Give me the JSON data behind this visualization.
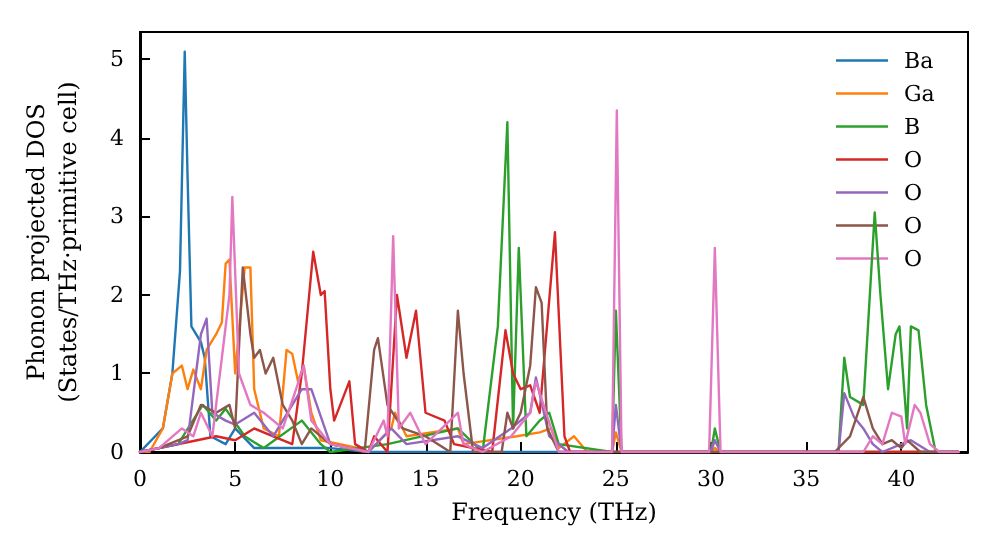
{
  "chart_data": {
    "type": "line",
    "xlabel": "Frequency (THz)",
    "ylabel": "Phonon projected DOS\n(States/THz·primitive cell)",
    "xlim": [
      0,
      43.5
    ],
    "xticks": [
      0,
      5,
      10,
      15,
      20,
      25,
      30,
      35,
      40
    ],
    "ylim": [
      0,
      5.35
    ],
    "yticks": [
      0,
      1,
      2,
      3,
      4,
      5
    ],
    "grid": false,
    "legend": "top right",
    "line_style": "solid",
    "series": [
      {
        "name": "Ba",
        "color": "#1f77b4",
        "x": [
          0,
          1.2,
          1.7,
          2.1,
          2.35,
          2.5,
          2.7,
          3.2,
          3.4,
          3.7,
          4.5,
          5,
          6,
          8,
          10,
          12,
          43
        ],
        "values": [
          0,
          0.3,
          1,
          2.3,
          5.1,
          3.5,
          1.6,
          1.4,
          1.2,
          0.2,
          0.1,
          0.3,
          0.05,
          0.05,
          0.05,
          0,
          0
        ]
      },
      {
        "name": "Ga",
        "color": "#ff7f0e",
        "x": [
          0,
          0.5,
          1.2,
          1.7,
          2.2,
          2.5,
          2.8,
          3.2,
          3.5,
          4,
          4.3,
          4.5,
          4.7,
          5,
          5.5,
          5.8,
          6,
          6.5,
          7.3,
          7.7,
          8,
          8.3,
          8.6,
          9,
          9.5,
          10.5,
          11.5,
          12,
          13.2,
          13.4,
          14,
          16.7,
          17,
          19.8,
          21,
          21.6,
          22,
          22.8,
          23.5,
          24.8,
          25,
          25.3,
          30,
          30.2,
          30.5,
          43
        ],
        "values": [
          0,
          0,
          0.3,
          1,
          1.1,
          0.8,
          1.05,
          0.8,
          1.3,
          1.5,
          1.65,
          2.4,
          2.45,
          1,
          2.35,
          2.35,
          0.8,
          0.3,
          0.2,
          1.3,
          1.25,
          0.9,
          1.1,
          0.5,
          0.15,
          0.1,
          0.05,
          0,
          0.3,
          0.5,
          0.2,
          0.3,
          0.1,
          0.2,
          0.25,
          0.3,
          0.05,
          0.2,
          0,
          0,
          0.25,
          0,
          0,
          0.05,
          0,
          0
        ]
      },
      {
        "name": "B",
        "color": "#2ca02c",
        "x": [
          0,
          2,
          3.3,
          4,
          4.5,
          5.5,
          6.5,
          8.5,
          9.5,
          10,
          13,
          16.7,
          18,
          18.8,
          19.3,
          19.6,
          19.9,
          20.3,
          21,
          21.5,
          22,
          24.8,
          25,
          25.3,
          30,
          30.2,
          30.5,
          36.7,
          37,
          37.3,
          38,
          38.6,
          38.9,
          39.3,
          39.7,
          39.9,
          40.3,
          40.5,
          40.9,
          41.3,
          41.8,
          43
        ],
        "values": [
          0,
          0.1,
          0.6,
          0.4,
          0.55,
          0.2,
          0.05,
          0.4,
          0.1,
          0,
          0.1,
          0.3,
          0,
          1.6,
          4.2,
          0.3,
          2.6,
          0.2,
          0.4,
          0.5,
          0.1,
          0,
          1.8,
          0,
          0,
          0.3,
          0,
          0,
          1.2,
          0.7,
          0.6,
          3.05,
          2,
          0.8,
          1.5,
          1.6,
          0.3,
          1.6,
          1.55,
          0.6,
          0,
          0
        ]
      },
      {
        "name": "O",
        "color": "#d62728",
        "x": [
          0,
          1,
          3,
          4,
          5,
          6,
          7,
          8,
          8.5,
          9.1,
          9.5,
          9.7,
          10,
          10.2,
          11,
          11.3,
          12,
          12.3,
          13,
          13.5,
          14,
          14.5,
          15,
          16,
          16.5,
          18.5,
          19.2,
          19.6,
          20,
          20.5,
          21,
          21.8,
          22.3,
          22.6,
          43
        ],
        "values": [
          0,
          0.05,
          0.15,
          0.2,
          0.15,
          0.3,
          0.2,
          0.1,
          1,
          2.55,
          2,
          2.05,
          0.8,
          0.4,
          0.9,
          0.1,
          0,
          0.2,
          0,
          2,
          1.2,
          1.8,
          0.5,
          0.4,
          0.1,
          0,
          1.55,
          1,
          0.8,
          0.85,
          0.5,
          2.8,
          0.2,
          0,
          0
        ]
      },
      {
        "name": "O",
        "color": "#9467bd",
        "x": [
          0,
          1,
          2,
          2.5,
          3.2,
          3.5,
          3.8,
          4.5,
          5,
          6,
          7,
          8.5,
          9,
          10,
          11,
          12,
          13.2,
          14,
          16.7,
          18,
          19.5,
          20.5,
          20.8,
          21.5,
          22.5,
          24.8,
          25,
          25.3,
          30,
          30.2,
          30.5,
          36.7,
          37,
          37.5,
          38,
          38.5,
          39,
          40,
          40.5,
          41.5,
          43
        ],
        "values": [
          0,
          0.05,
          0.1,
          0.15,
          1.5,
          1.7,
          0.5,
          0.4,
          0.35,
          0.5,
          0.2,
          0.8,
          0.8,
          0.1,
          0.05,
          0,
          0.3,
          0.1,
          0.2,
          0.05,
          0.3,
          0.5,
          0.95,
          0.2,
          0,
          0,
          0.6,
          0,
          0,
          0.15,
          0,
          0,
          0.75,
          0.45,
          0.3,
          0.1,
          0,
          0.1,
          0.15,
          0,
          0
        ]
      },
      {
        "name": "O",
        "color": "#8c564b",
        "x": [
          0,
          1,
          2.5,
          3.2,
          4,
          4.7,
          5,
          5.4,
          5.8,
          6,
          6.3,
          6.6,
          7,
          7.5,
          8,
          8.5,
          9,
          10,
          11,
          11.8,
          12.3,
          12.5,
          13,
          13.8,
          15,
          16.3,
          16.7,
          17,
          17.5,
          19,
          19.3,
          19.6,
          20,
          20.5,
          20.8,
          21.1,
          21.4,
          22,
          36.5,
          37.3,
          38,
          38.5,
          39,
          39.5,
          40,
          40.3,
          41,
          43
        ],
        "values": [
          0,
          0.05,
          0.2,
          0.6,
          0.5,
          0.6,
          0.3,
          2.35,
          1.5,
          1.2,
          1.3,
          1,
          1.2,
          0.6,
          0.4,
          0.1,
          0.3,
          0.1,
          0.05,
          0,
          1.3,
          1.45,
          0.6,
          0.3,
          0.2,
          0,
          1.8,
          1,
          0,
          0,
          0.5,
          0.3,
          0.5,
          1.1,
          2.1,
          1.9,
          0.3,
          0,
          0,
          0.2,
          0.7,
          0.3,
          0.1,
          0.15,
          0.05,
          0.15,
          0,
          0
        ]
      },
      {
        "name": "O",
        "color": "#e377c2",
        "x": [
          0,
          1,
          2.2,
          2.8,
          3.2,
          3.8,
          4.7,
          4.85,
          5.2,
          5.8,
          6.5,
          7.5,
          8.2,
          8.6,
          9,
          10,
          12,
          12.8,
          13,
          13.3,
          13.6,
          14.2,
          15,
          16.7,
          17,
          18,
          19.5,
          20.5,
          20.8,
          22,
          24.8,
          25.05,
          25.3,
          29.9,
          30.2,
          30.5,
          38,
          38.5,
          39,
          39.5,
          40,
          40.2,
          40.7,
          41,
          41.5,
          42,
          43
        ],
        "values": [
          0,
          0.05,
          0.3,
          0.2,
          0.5,
          0.2,
          2,
          3.25,
          1,
          0.6,
          0.5,
          0.3,
          0.8,
          1.1,
          0.4,
          0.1,
          0,
          0.4,
          0.2,
          2.75,
          0.3,
          0.5,
          0.1,
          0.5,
          0.1,
          0,
          0.2,
          0.5,
          0.9,
          0,
          0,
          4.35,
          0,
          0,
          2.6,
          0,
          0,
          0.2,
          0.1,
          0.5,
          0.45,
          0.1,
          0.6,
          0.5,
          0.1,
          0,
          0
        ]
      }
    ]
  }
}
